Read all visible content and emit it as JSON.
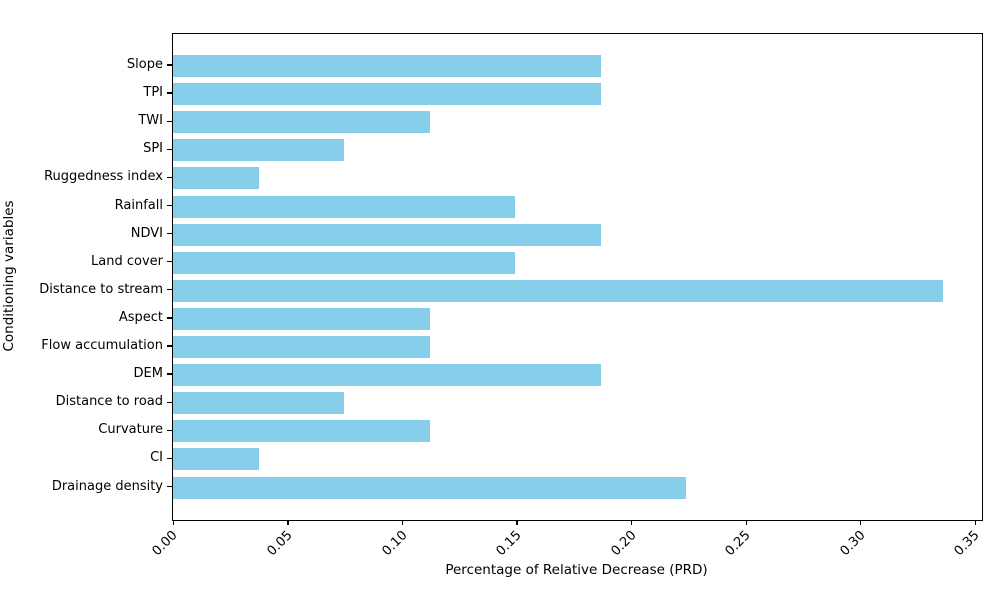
{
  "chart_data": {
    "type": "bar",
    "orientation": "horizontal",
    "xlabel": "Percentage of Relative Decrease (PRD)",
    "ylabel": "Conditioning variables",
    "categories": [
      "Slope",
      "TPI",
      "TWI",
      "SPI",
      "Ruggedness index",
      "Rainfall",
      "NDVI",
      "Land cover",
      "Distance to stream",
      "Aspect",
      "Flow accumulation",
      "DEM",
      "Distance to road",
      "Curvature",
      "CI",
      "Drainage density"
    ],
    "values": [
      0.1867,
      0.1867,
      0.112,
      0.0747,
      0.0373,
      0.1493,
      0.1867,
      0.1493,
      0.336,
      0.112,
      0.112,
      0.1867,
      0.0747,
      0.112,
      0.0373,
      0.224
    ],
    "x_ticks": [
      {
        "label": "0.00",
        "value": 0.0
      },
      {
        "label": "0.05",
        "value": 0.05
      },
      {
        "label": "0.10",
        "value": 0.1
      },
      {
        "label": "0.15",
        "value": 0.15
      },
      {
        "label": "0.20",
        "value": 0.2
      },
      {
        "label": "0.25",
        "value": 0.25
      },
      {
        "label": "0.30",
        "value": 0.3
      },
      {
        "label": "0.35",
        "value": 0.35
      }
    ],
    "xlim": [
      0,
      0.353
    ],
    "bar_color": "#87CEEB",
    "axis_color": "#000000",
    "grid": false,
    "legend": null
  }
}
